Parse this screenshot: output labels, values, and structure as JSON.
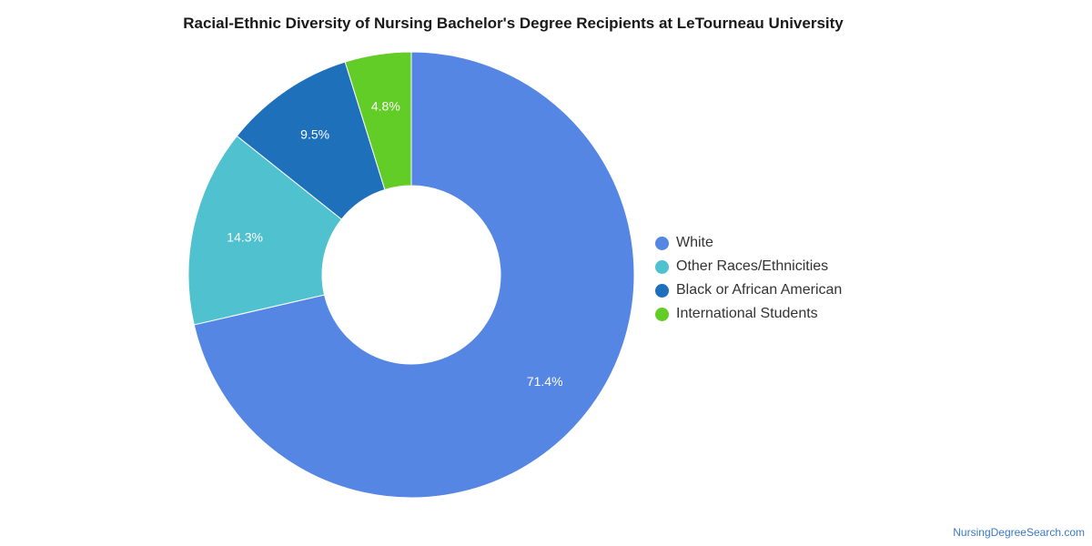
{
  "chart_data": {
    "type": "pie",
    "variant": "donut",
    "title": "Racial-Ethnic Diversity of Nursing Bachelor's Degree Recipients at LeTourneau University",
    "categories": [
      "White",
      "Other Races/Ethnicities",
      "Black or African American",
      "International Students"
    ],
    "values": [
      71.4,
      14.3,
      9.5,
      4.8
    ],
    "value_labels": [
      "71.4%",
      "14.3%",
      "9.5%",
      "4.8%"
    ],
    "colors": [
      "#5586e3",
      "#50c1cf",
      "#1f70bb",
      "#61cd26"
    ],
    "legend_position": "right"
  },
  "watermark": "NursingDegreeSearch.com"
}
